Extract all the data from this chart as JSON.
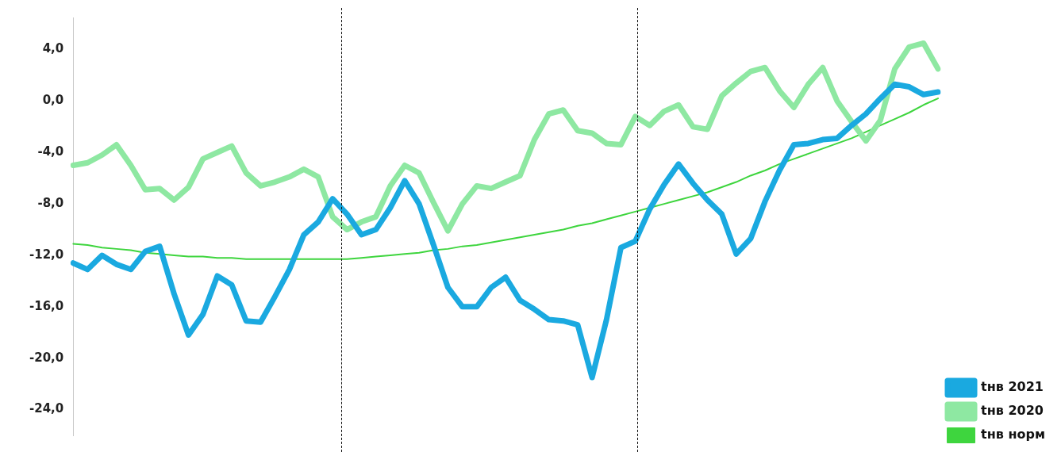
{
  "chart_data": {
    "type": "line",
    "categories": [
      null,
      null,
      null,
      null,
      null,
      null,
      null,
      null,
      null,
      null,
      null,
      null,
      null,
      null,
      null,
      null,
      null,
      null,
      null,
      null,
      null,
      null,
      null,
      null,
      null,
      null,
      null,
      null,
      null,
      null,
      null,
      null,
      null,
      null,
      null,
      null,
      null,
      null,
      null,
      null,
      null,
      null,
      null,
      null,
      null,
      null,
      null,
      null,
      null,
      null,
      null,
      null,
      null,
      null,
      null,
      null,
      null,
      null,
      null,
      null,
      null
    ],
    "ylim": [
      -26,
      6.5
    ],
    "yticks": [
      {
        "value": 4,
        "label": "4,0"
      },
      {
        "value": 0,
        "label": "0,0"
      },
      {
        "value": -4,
        "label": "-4,0"
      },
      {
        "value": -8,
        "label": "-8,0"
      },
      {
        "value": -12,
        "label": "-12,0"
      },
      {
        "value": -16,
        "label": "-16,0"
      },
      {
        "value": -20,
        "label": "-20,0"
      },
      {
        "value": -24,
        "label": "-24,0"
      }
    ],
    "tick_labels": "y",
    "grid": false,
    "legend": "bottom right",
    "series": [
      {
        "name": "tнв 2021",
        "color": "#1aa9e0",
        "values": [
          -12.6,
          -13.1,
          -12.0,
          -12.7,
          -13.1,
          -11.7,
          -11.3,
          -15.0,
          -18.2,
          -16.6,
          -13.6,
          -14.3,
          -17.1,
          -17.2,
          -15.2,
          -13.1,
          -10.4,
          -9.4,
          -7.6,
          -8.8,
          -10.4,
          -10.0,
          -8.3,
          -6.2,
          -8.0,
          -11.2,
          -14.5,
          -16.0,
          -16.0,
          -14.5,
          -13.7,
          -15.5,
          -16.2,
          -17.0,
          -17.1,
          -17.4,
          -21.5,
          -17.0,
          -11.4,
          -10.9,
          -8.4,
          -6.5,
          -4.9,
          -6.4,
          -7.7,
          -8.8,
          -11.9,
          -10.7,
          -7.8,
          -5.4,
          -3.4,
          -3.3,
          -3.0,
          -2.9,
          -1.9,
          -1.0,
          0.2,
          1.3,
          1.1,
          0.5,
          0.7
        ]
      },
      {
        "name": "tнв 2020",
        "color": "#8ee8a2",
        "values": [
          -5.0,
          -4.8,
          -4.2,
          -3.4,
          -5.0,
          -6.9,
          -6.8,
          -7.7,
          -6.7,
          -4.5,
          -4.0,
          -3.5,
          -5.6,
          -6.6,
          -6.3,
          -5.9,
          -5.3,
          -5.9,
          -9.0,
          -10.0,
          -9.4,
          -9.0,
          -6.6,
          -5.0,
          -5.6,
          -7.9,
          -10.1,
          -8.0,
          -6.6,
          -6.8,
          -6.3,
          -5.8,
          -3.0,
          -1.0,
          -0.7,
          -2.3,
          -2.5,
          -3.3,
          -3.4,
          -1.2,
          -1.9,
          -0.8,
          -0.3,
          -2.0,
          -2.2,
          0.4,
          1.4,
          2.3,
          2.6,
          0.8,
          -0.5,
          1.3,
          2.6,
          0.0,
          -1.6,
          -3.1,
          -1.5,
          2.5,
          4.2,
          4.5,
          2.5
        ]
      },
      {
        "name": "tнв норм",
        "color": "#3ed53e",
        "values": [
          -11.1,
          -11.2,
          -11.4,
          -11.5,
          -11.6,
          -11.8,
          -11.9,
          -12.0,
          -12.1,
          -12.1,
          -12.2,
          -12.2,
          -12.3,
          -12.3,
          -12.3,
          -12.3,
          -12.3,
          -12.3,
          -12.3,
          -12.3,
          -12.2,
          -12.1,
          -12.0,
          -11.9,
          -11.8,
          -11.6,
          -11.5,
          -11.3,
          -11.2,
          -11.0,
          -10.8,
          -10.6,
          -10.4,
          -10.2,
          -10.0,
          -9.7,
          -9.5,
          -9.2,
          -8.9,
          -8.6,
          -8.3,
          -8.0,
          -7.7,
          -7.4,
          -7.1,
          -6.7,
          -6.3,
          -5.8,
          -5.4,
          -4.9,
          -4.5,
          -4.1,
          -3.7,
          -3.3,
          -2.9,
          -2.4,
          -1.9,
          -1.4,
          -0.9,
          -0.3,
          0.2
        ]
      }
    ]
  }
}
